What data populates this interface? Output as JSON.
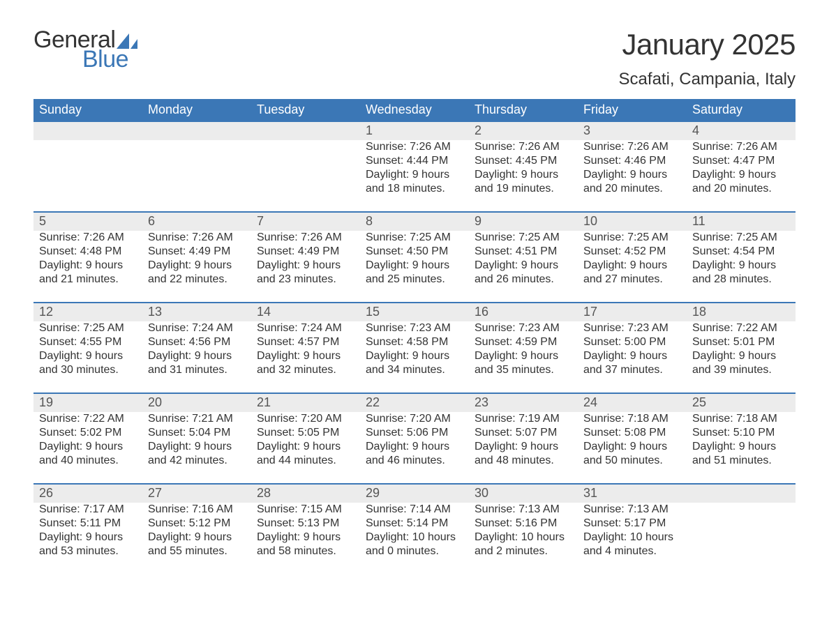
{
  "brand": {
    "word1": "General",
    "word2": "Blue",
    "word1_color": "#333333",
    "word2_color": "#3b77b6",
    "sail_color": "#3b77b6"
  },
  "title": "January 2025",
  "location": "Scafati, Campania, Italy",
  "colors": {
    "header_bg": "#3b77b6",
    "header_text": "#ffffff",
    "daynum_bg": "#ececec",
    "daynum_border": "#3b77b6",
    "body_text": "#333333",
    "background": "#ffffff"
  },
  "typography": {
    "title_fontsize": 42,
    "location_fontsize": 24,
    "header_fontsize": 18,
    "daynum_fontsize": 18,
    "cell_fontsize": 16,
    "font_family": "Arial"
  },
  "layout": {
    "columns": 7,
    "rows": 5,
    "leading_blanks": 3,
    "trailing_blanks": 1
  },
  "weekdays": [
    "Sunday",
    "Monday",
    "Tuesday",
    "Wednesday",
    "Thursday",
    "Friday",
    "Saturday"
  ],
  "labels": {
    "sunrise": "Sunrise:",
    "sunset": "Sunset:",
    "daylight": "Daylight:"
  },
  "days": [
    {
      "n": "1",
      "sunrise": "7:26 AM",
      "sunset": "4:44 PM",
      "daylight": "9 hours and 18 minutes."
    },
    {
      "n": "2",
      "sunrise": "7:26 AM",
      "sunset": "4:45 PM",
      "daylight": "9 hours and 19 minutes."
    },
    {
      "n": "3",
      "sunrise": "7:26 AM",
      "sunset": "4:46 PM",
      "daylight": "9 hours and 20 minutes."
    },
    {
      "n": "4",
      "sunrise": "7:26 AM",
      "sunset": "4:47 PM",
      "daylight": "9 hours and 20 minutes."
    },
    {
      "n": "5",
      "sunrise": "7:26 AM",
      "sunset": "4:48 PM",
      "daylight": "9 hours and 21 minutes."
    },
    {
      "n": "6",
      "sunrise": "7:26 AM",
      "sunset": "4:49 PM",
      "daylight": "9 hours and 22 minutes."
    },
    {
      "n": "7",
      "sunrise": "7:26 AM",
      "sunset": "4:49 PM",
      "daylight": "9 hours and 23 minutes."
    },
    {
      "n": "8",
      "sunrise": "7:25 AM",
      "sunset": "4:50 PM",
      "daylight": "9 hours and 25 minutes."
    },
    {
      "n": "9",
      "sunrise": "7:25 AM",
      "sunset": "4:51 PM",
      "daylight": "9 hours and 26 minutes."
    },
    {
      "n": "10",
      "sunrise": "7:25 AM",
      "sunset": "4:52 PM",
      "daylight": "9 hours and 27 minutes."
    },
    {
      "n": "11",
      "sunrise": "7:25 AM",
      "sunset": "4:54 PM",
      "daylight": "9 hours and 28 minutes."
    },
    {
      "n": "12",
      "sunrise": "7:25 AM",
      "sunset": "4:55 PM",
      "daylight": "9 hours and 30 minutes."
    },
    {
      "n": "13",
      "sunrise": "7:24 AM",
      "sunset": "4:56 PM",
      "daylight": "9 hours and 31 minutes."
    },
    {
      "n": "14",
      "sunrise": "7:24 AM",
      "sunset": "4:57 PM",
      "daylight": "9 hours and 32 minutes."
    },
    {
      "n": "15",
      "sunrise": "7:23 AM",
      "sunset": "4:58 PM",
      "daylight": "9 hours and 34 minutes."
    },
    {
      "n": "16",
      "sunrise": "7:23 AM",
      "sunset": "4:59 PM",
      "daylight": "9 hours and 35 minutes."
    },
    {
      "n": "17",
      "sunrise": "7:23 AM",
      "sunset": "5:00 PM",
      "daylight": "9 hours and 37 minutes."
    },
    {
      "n": "18",
      "sunrise": "7:22 AM",
      "sunset": "5:01 PM",
      "daylight": "9 hours and 39 minutes."
    },
    {
      "n": "19",
      "sunrise": "7:22 AM",
      "sunset": "5:02 PM",
      "daylight": "9 hours and 40 minutes."
    },
    {
      "n": "20",
      "sunrise": "7:21 AM",
      "sunset": "5:04 PM",
      "daylight": "9 hours and 42 minutes."
    },
    {
      "n": "21",
      "sunrise": "7:20 AM",
      "sunset": "5:05 PM",
      "daylight": "9 hours and 44 minutes."
    },
    {
      "n": "22",
      "sunrise": "7:20 AM",
      "sunset": "5:06 PM",
      "daylight": "9 hours and 46 minutes."
    },
    {
      "n": "23",
      "sunrise": "7:19 AM",
      "sunset": "5:07 PM",
      "daylight": "9 hours and 48 minutes."
    },
    {
      "n": "24",
      "sunrise": "7:18 AM",
      "sunset": "5:08 PM",
      "daylight": "9 hours and 50 minutes."
    },
    {
      "n": "25",
      "sunrise": "7:18 AM",
      "sunset": "5:10 PM",
      "daylight": "9 hours and 51 minutes."
    },
    {
      "n": "26",
      "sunrise": "7:17 AM",
      "sunset": "5:11 PM",
      "daylight": "9 hours and 53 minutes."
    },
    {
      "n": "27",
      "sunrise": "7:16 AM",
      "sunset": "5:12 PM",
      "daylight": "9 hours and 55 minutes."
    },
    {
      "n": "28",
      "sunrise": "7:15 AM",
      "sunset": "5:13 PM",
      "daylight": "9 hours and 58 minutes."
    },
    {
      "n": "29",
      "sunrise": "7:14 AM",
      "sunset": "5:14 PM",
      "daylight": "10 hours and 0 minutes."
    },
    {
      "n": "30",
      "sunrise": "7:13 AM",
      "sunset": "5:16 PM",
      "daylight": "10 hours and 2 minutes."
    },
    {
      "n": "31",
      "sunrise": "7:13 AM",
      "sunset": "5:17 PM",
      "daylight": "10 hours and 4 minutes."
    }
  ]
}
